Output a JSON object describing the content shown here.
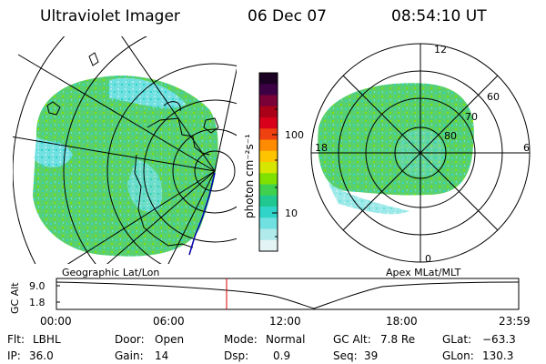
{
  "header": {
    "instrument": "Ultraviolet Imager",
    "date": "06 Dec 07",
    "time": "08:54:10 UT"
  },
  "left_map": {
    "label": "Geographic Lat/Lon",
    "icon": "geographic-map-icon"
  },
  "right_map": {
    "label": "Apex MLat/MLT",
    "mlt_labels": {
      "top": "12",
      "left": "18",
      "right": "6",
      "bottom": "0"
    },
    "mlat_labels": [
      "60",
      "70",
      "80"
    ]
  },
  "colorbar": {
    "unit_label": "photon cm⁻²s⁻¹",
    "tick_labels": [
      "100",
      "10"
    ],
    "colors": [
      "#1a0022",
      "#3c0044",
      "#7a0038",
      "#aa0018",
      "#d8001a",
      "#ee4010",
      "#ff8c00",
      "#ffc400",
      "#d6e600",
      "#80e000",
      "#40d050",
      "#20c890",
      "#30d4c8",
      "#70e0e0",
      "#b0eaea",
      "#e4f4f4"
    ]
  },
  "altitude_plot": {
    "ylabel": "GC Alt",
    "y_ticks": [
      "9.0",
      "1.8"
    ],
    "x_ticks": [
      "00:00",
      "06:00",
      "12:00",
      "18:00",
      "23:59"
    ],
    "marker_time": "08:54",
    "marker_color": "#dd0000"
  },
  "info": {
    "flt_label": "Flt:",
    "flt_value": "LBHL",
    "ip_label": "IP:",
    "ip_value": "36.0",
    "door_label": "Door:",
    "door_value": "Open",
    "gain_label": "Gain:",
    "gain_value": "14",
    "mode_label": "Mode:",
    "mode_value": "Normal",
    "dsp_label": "Dsp:",
    "dsp_value": "0.9",
    "gcalt_label": "GC Alt:",
    "gcalt_value": "7.8 Re",
    "seq_label": "Seq:",
    "seq_value": "39",
    "glat_label": "GLat:",
    "glat_value": "−63.3",
    "glon_label": "GLon:",
    "glon_value": "130.3"
  },
  "colors": {
    "aurora_green": "#58d070",
    "aurora_cyan": "#30d4c8",
    "coast_blue": "#0000aa"
  }
}
